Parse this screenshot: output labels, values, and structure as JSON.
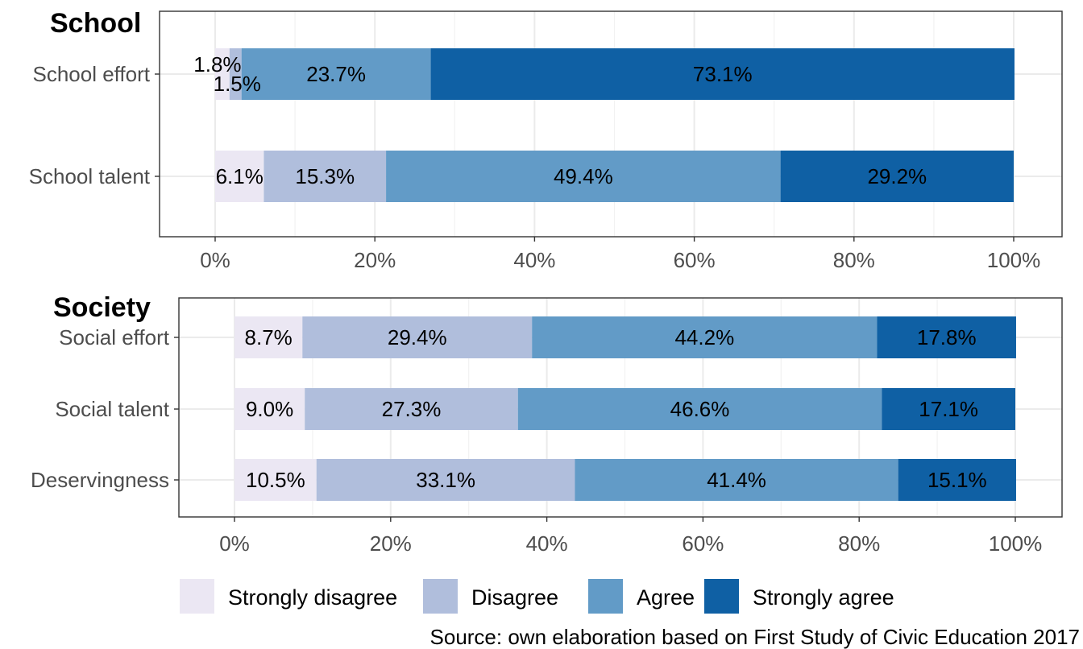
{
  "chart_data": [
    {
      "type": "bar",
      "orientation": "horizontal",
      "stacked": true,
      "title": "School",
      "categories": [
        "School effort",
        "School talent"
      ],
      "series": [
        {
          "name": "Strongly disagree",
          "values": [
            1.8,
            6.1
          ],
          "labels": [
            "1.8%",
            "6.1%"
          ]
        },
        {
          "name": "Disagree",
          "values": [
            1.5,
            15.3
          ],
          "labels": [
            "1.5%",
            "15.3%"
          ]
        },
        {
          "name": "Agree",
          "values": [
            23.7,
            49.4
          ],
          "labels": [
            "23.7%",
            "49.4%"
          ]
        },
        {
          "name": "Strongly agree",
          "values": [
            73.1,
            29.2
          ],
          "labels": [
            "73.1%",
            "29.2%"
          ]
        }
      ],
      "xlim": [
        0,
        100
      ],
      "x_ticks": [
        "0%",
        "20%",
        "40%",
        "60%",
        "80%",
        "100%"
      ],
      "grid": true
    },
    {
      "type": "bar",
      "orientation": "horizontal",
      "stacked": true,
      "title": "Society",
      "categories": [
        "Social effort",
        "Social talent",
        "Deservingness"
      ],
      "series": [
        {
          "name": "Strongly disagree",
          "values": [
            8.7,
            9.0,
            10.5
          ],
          "labels": [
            "8.7%",
            "9.0%",
            "10.5%"
          ]
        },
        {
          "name": "Disagree",
          "values": [
            29.4,
            27.3,
            33.1
          ],
          "labels": [
            "29.4%",
            "27.3%",
            "33.1%"
          ]
        },
        {
          "name": "Agree",
          "values": [
            44.2,
            46.6,
            41.4
          ],
          "labels": [
            "44.2%",
            "46.6%",
            "41.4%"
          ]
        },
        {
          "name": "Strongly agree",
          "values": [
            17.8,
            17.1,
            15.1
          ],
          "labels": [
            "17.8%",
            "17.1%",
            "15.1%"
          ]
        }
      ],
      "xlim": [
        0,
        100
      ],
      "x_ticks": [
        "0%",
        "20%",
        "40%",
        "60%",
        "80%",
        "100%"
      ],
      "grid": true
    }
  ],
  "colors": [
    "#ebe7f3",
    "#b0bedc",
    "#629bc7",
    "#0f60a4"
  ],
  "legend": {
    "position": "bottom",
    "items": [
      "Strongly disagree",
      "Disagree",
      "Agree",
      "Strongly agree"
    ]
  },
  "source": "Source: own elaboration based on First Study of Civic Education 2017"
}
